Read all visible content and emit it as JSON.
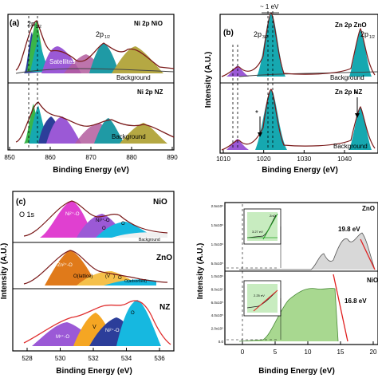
{
  "panels": {
    "a": {
      "label": "(a)",
      "top_title": "Ni 2p NiO",
      "bottom_title": "Ni 2p NZ",
      "peak_label_32": "2p",
      "peak_label_32_sub": "3/2",
      "peak_label_12": "2p",
      "peak_label_12_sub": "1/2",
      "satellite_label": "Satellites",
      "background_label": "Background",
      "xlabel": "Binding Energy (eV)",
      "x_ticks": [
        "850",
        "860",
        "870",
        "880",
        "890"
      ]
    },
    "b": {
      "label": "(b)",
      "top_title": "Zn 2p ZnO",
      "bottom_title": "Zn 2p NZ",
      "shift_label": "~ 1 eV",
      "peak_label_32": "2p",
      "peak_label_32_sub": "3/2",
      "peak_label_12": "2p",
      "peak_label_12_sub": "1/2",
      "background_label": "Background",
      "star": "*",
      "ylabel": "Intensity (A.U.)",
      "xlabel": "Binding Energy (eV)",
      "x_ticks": [
        "1010",
        "1020",
        "1030",
        "1040"
      ]
    },
    "c": {
      "label": "(c)",
      "o1s_label": "O 1s",
      "top_title": "NiO",
      "mid_title": "ZnO",
      "bottom_title": "NZ",
      "ylabel": "Intensity (A.U.)",
      "xlabel": "Binding Energy (eV)",
      "x_ticks": [
        "528",
        "530",
        "532",
        "534",
        "536"
      ],
      "background_label": "Background",
      "nio_peaks": [
        "Ni²⁺-O",
        "Ni³⁺-O",
        "O",
        "O"
      ],
      "zno_peaks": [
        "Zn²⁺-O",
        "O(lattice)",
        "(V",
        ")",
        "O",
        "O(adsorbed)"
      ],
      "nz_peaks": [
        "Mⁿ⁺-O",
        "V",
        "Ni²⁺-O",
        "O"
      ]
    },
    "d": {
      "ylabel": "Intensity (A.U.)",
      "xlabel": "Binding Energy (eV)",
      "x_ticks": [
        "0",
        "5",
        "10",
        "15",
        "20"
      ],
      "y_ticks_top": [
        "2.5x10⁶",
        "1.5x10⁶",
        "1.0x10⁶",
        "5.0x10⁵"
      ],
      "y_ticks_bottom": [
        "1.0x10⁶",
        "8.0x10⁵",
        "6.0x10⁵",
        "4.0x10⁵",
        "2.0x10⁵",
        "0.0"
      ],
      "zno_label": "ZnO",
      "nio_label": "NiO",
      "zno_cutoff": "19.8 eV",
      "nio_cutoff": "16.8 eV",
      "inset_top_label": "3.27 eV",
      "inset_top_tag": "ZnO",
      "inset_bottom_label": "2.25 eV"
    }
  }
}
